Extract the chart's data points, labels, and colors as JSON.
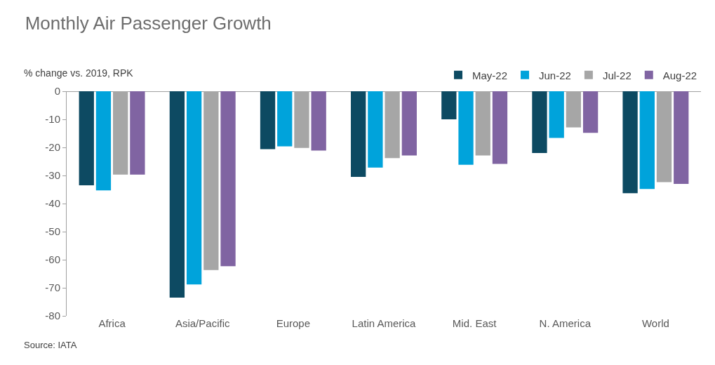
{
  "chart_data": {
    "type": "bar",
    "title": "Monthly Air Passenger Growth",
    "ylabel": "% change vs. 2019, RPK",
    "categories": [
      "Africa",
      "Asia/Pacific",
      "Europe",
      "Latin America",
      "Mid. East",
      "N. America",
      "World"
    ],
    "series": [
      {
        "name": "May-22",
        "color": "#0d4a62",
        "values": [
          -33.5,
          -73.5,
          -20.6,
          -30.5,
          -10,
          -22,
          -36.3
        ]
      },
      {
        "name": "Jun-22",
        "color": "#00a3db",
        "values": [
          -35.3,
          -68.8,
          -19.6,
          -27.2,
          -26.2,
          -16.6,
          -34.8
        ]
      },
      {
        "name": "Jul-22",
        "color": "#a6a6a6",
        "values": [
          -29.7,
          -63.7,
          -20.2,
          -23.8,
          -22.9,
          -12.9,
          -32.4
        ]
      },
      {
        "name": "Aug-22",
        "color": "#8064a2",
        "values": [
          -29.7,
          -62.3,
          -21.1,
          -22.9,
          -25.9,
          -14.8,
          -33
        ]
      }
    ],
    "ylim": [
      -80,
      0
    ],
    "yticks": [
      -80,
      -70,
      -60,
      -50,
      -40,
      -30,
      -20,
      -10,
      0
    ],
    "grid": false,
    "legend": "top right",
    "annotations": [
      "Source: IATA"
    ]
  }
}
